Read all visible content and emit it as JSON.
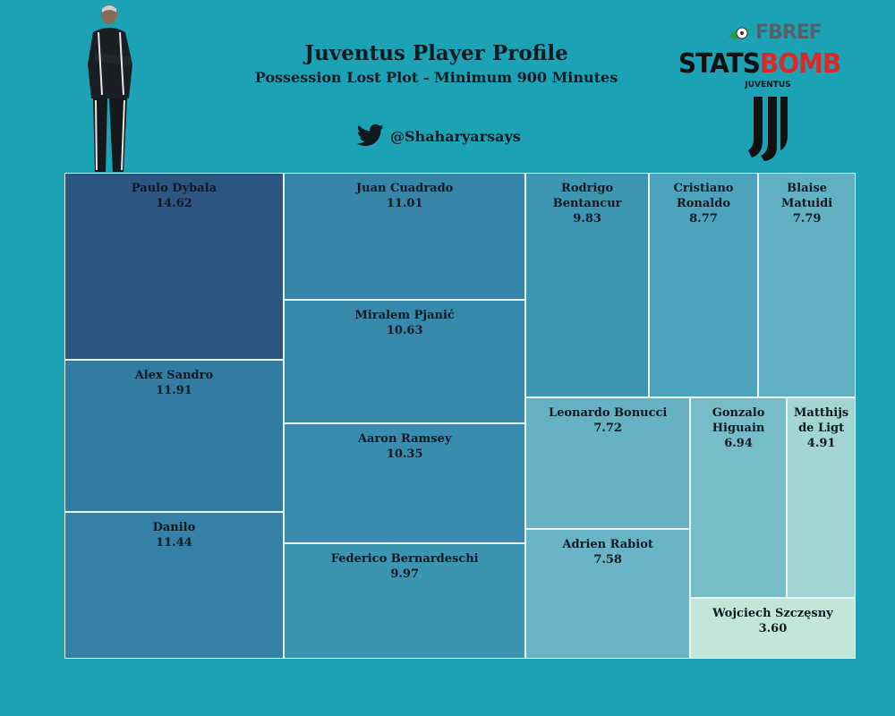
{
  "header": {
    "title": "Juventus Player Profile",
    "subtitle": "Possession Lost Plot - Minimum 900 Minutes",
    "handle": "@Shaharyarsays"
  },
  "logos": {
    "fbref": "FBREF",
    "statsbomb_left": "STATS",
    "statsbomb_right": "BOMB",
    "club": "JUVENTUS"
  },
  "chart_data": {
    "type": "treemap",
    "title": "Juventus Player Profile",
    "subtitle": "Possession Lost Plot - Minimum 900 Minutes",
    "items": [
      {
        "label": "Paulo Dybala",
        "value": 14.62,
        "display": "14.62",
        "color": "#2d5581"
      },
      {
        "label": "Alex Sandro",
        "value": 11.91,
        "display": "11.91",
        "color": "#327ca3"
      },
      {
        "label": "Danilo",
        "value": 11.44,
        "display": "11.44",
        "color": "#3580a6"
      },
      {
        "label": "Juan Cuadrado",
        "value": 11.01,
        "display": "11.01",
        "color": "#3685a8"
      },
      {
        "label": "Miralem Pjanić",
        "value": 10.63,
        "display": "10.63",
        "color": "#3689ab"
      },
      {
        "label": "Aaron Ramsey",
        "value": 10.35,
        "display": "10.35",
        "color": "#398cae"
      },
      {
        "label": "Federico Bernardeschi",
        "value": 9.97,
        "display": "9.97",
        "color": "#3c95b0"
      },
      {
        "label": "Rodrigo\nBentancur",
        "value": 9.83,
        "display": "9.83",
        "color": "#3d97b2"
      },
      {
        "label": "Cristiano\nRonaldo",
        "value": 8.77,
        "display": "8.77",
        "color": "#4ea3bc"
      },
      {
        "label": "Blaise\nMatuidi",
        "value": 7.79,
        "display": "7.79",
        "color": "#62b0c3"
      },
      {
        "label": "Leonardo Bonucci",
        "value": 7.72,
        "display": "7.72",
        "color": "#66b2c4"
      },
      {
        "label": "Adrien Rabiot",
        "value": 7.58,
        "display": "7.58",
        "color": "#69b4c6"
      },
      {
        "label": "Gonzalo\nHiguain",
        "value": 6.94,
        "display": "6.94",
        "color": "#77bcc9"
      },
      {
        "label": "Matthijs\nde Ligt",
        "value": 4.91,
        "display": "4.91",
        "color": "#a2d5d3"
      },
      {
        "label": "Wojciech Szczęsny",
        "value": 3.6,
        "display": "3.60",
        "color": "#c2e6d8"
      }
    ]
  }
}
